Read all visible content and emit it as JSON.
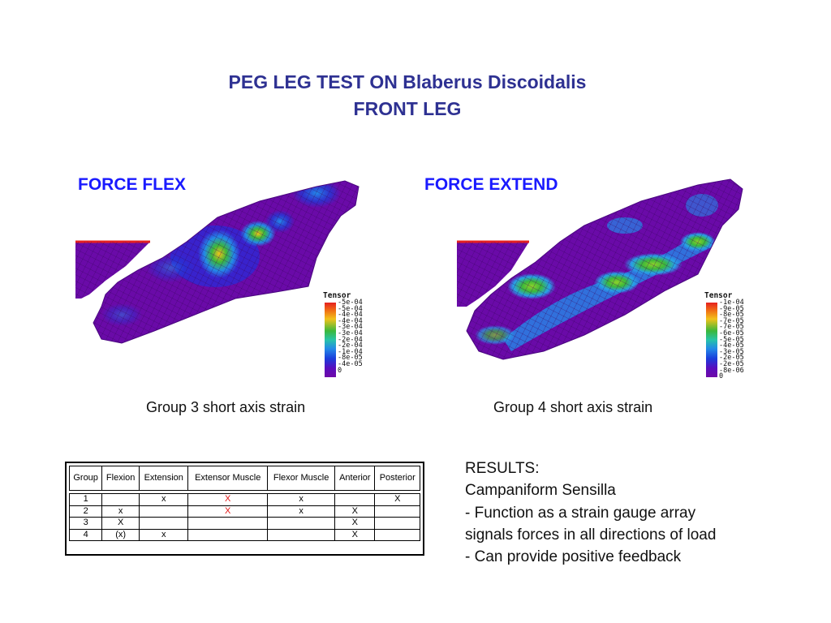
{
  "title": {
    "line1": "PEG LEG TEST ON Blaberus Discoidalis",
    "line2": "FRONT LEG"
  },
  "panels": [
    {
      "title": "FORCE FLEX",
      "caption": "Group 3 short axis strain",
      "colorbar": {
        "title": "Tensor",
        "ticks": [
          "-5e-04",
          "-5e-04",
          "-4e-04",
          "-4e-04",
          "-3e-04",
          "-3e-04",
          "-2e-04",
          "-2e-04",
          "-1e-04",
          "-8e-05",
          "-4e-05",
          "0"
        ]
      }
    },
    {
      "title": "FORCE EXTEND",
      "caption": "Group 4 short axis strain",
      "colorbar": {
        "title": "Tensor",
        "ticks": [
          "-1e-04",
          "-9e-05",
          "-8e-05",
          "-7e-05",
          "-7e-05",
          "-6e-05",
          "-5e-05",
          "-4e-05",
          "-3e-05",
          "-2e-05",
          "-2e-05",
          "-8e-06",
          "0"
        ]
      }
    }
  ],
  "table": {
    "headers": [
      "Group",
      "Flexion",
      "Extension",
      "Extensor Muscle",
      "Flexor Muscle",
      "Anterior",
      "Posterior"
    ],
    "rows": [
      [
        "1",
        "",
        "x",
        "X",
        "x",
        "",
        "X"
      ],
      [
        "2",
        "x",
        "",
        "X",
        "x",
        "X",
        ""
      ],
      [
        "3",
        "X",
        "",
        "",
        "",
        "X",
        ""
      ],
      [
        "4",
        "(x)",
        "x",
        "",
        "",
        "X",
        ""
      ]
    ],
    "red_cells": [
      [
        0,
        3
      ],
      [
        1,
        3
      ]
    ]
  },
  "results": [
    "RESULTS:",
    "Campaniform Sensilla",
    "- Function as a strain gauge array",
    "signals forces in all directions of load",
    "- Can provide positive feedback"
  ],
  "colors": {
    "title": "#2e3192",
    "panel_title": "#1a1aff",
    "mesh_base": "#6a0aa8",
    "red_mark": "#e01515"
  }
}
